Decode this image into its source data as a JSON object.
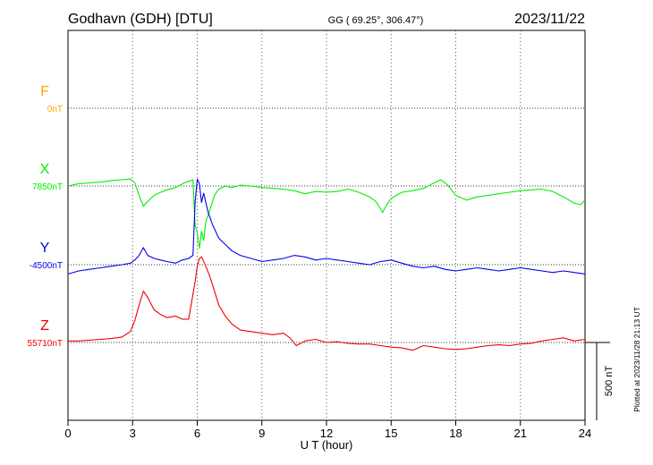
{
  "header": {
    "station": "Godhavn (GDH)  [DTU]",
    "coords": "GG ( 69.25°, 306.47°)",
    "date": "2023/11/22"
  },
  "side_note": "Plotted at 2023/11/28 21:13 UT",
  "scale_bar_label": "500 nT",
  "chart_data": {
    "type": "line",
    "xlabel": "U T (hour)",
    "xlim": [
      0,
      24
    ],
    "xticks": [
      0,
      3,
      6,
      9,
      12,
      15,
      18,
      21,
      24
    ],
    "ylabel": "",
    "scale_nT": 500,
    "series": [
      {
        "name": "F",
        "baseline_label": "0nT",
        "color": "#ffaa00",
        "x": [],
        "y": []
      },
      {
        "name": "X",
        "baseline_label": "7850nT",
        "color": "#00ee00",
        "x": [
          0,
          0.5,
          1,
          1.5,
          2,
          2.5,
          2.9,
          3.1,
          3.3,
          3.5,
          3.7,
          4,
          4.3,
          4.6,
          5,
          5.2,
          5.4,
          5.6,
          5.8,
          5.9,
          6,
          6.1,
          6.2,
          6.3,
          6.4,
          6.6,
          6.8,
          7,
          7.3,
          7.6,
          8,
          8.5,
          9,
          9.5,
          10,
          10.5,
          11,
          11.5,
          12,
          12.5,
          13,
          13.5,
          14,
          14.3,
          14.6,
          14.8,
          15,
          15.5,
          16,
          16.5,
          17,
          17.3,
          17.6,
          18,
          18.5,
          19,
          19.5,
          20,
          20.5,
          21,
          21.5,
          22,
          22.5,
          23,
          23.5,
          23.8,
          24
        ],
        "y": [
          7850,
          7865,
          7870,
          7875,
          7885,
          7890,
          7895,
          7870,
          7790,
          7720,
          7750,
          7790,
          7810,
          7825,
          7840,
          7855,
          7870,
          7880,
          7890,
          7600,
          7550,
          7450,
          7560,
          7500,
          7620,
          7700,
          7790,
          7830,
          7850,
          7840,
          7855,
          7850,
          7840,
          7835,
          7830,
          7820,
          7800,
          7815,
          7810,
          7815,
          7830,
          7810,
          7780,
          7750,
          7680,
          7730,
          7770,
          7810,
          7820,
          7835,
          7870,
          7890,
          7860,
          7790,
          7760,
          7780,
          7790,
          7800,
          7810,
          7820,
          7825,
          7830,
          7815,
          7780,
          7740,
          7730,
          7760
        ]
      },
      {
        "name": "Y",
        "baseline_label": "-4500nT",
        "color": "#0000ee",
        "x": [
          0,
          0.5,
          1,
          1.5,
          2,
          2.5,
          2.9,
          3.1,
          3.3,
          3.5,
          3.7,
          4,
          4.3,
          4.6,
          5,
          5.3,
          5.6,
          5.8,
          5.9,
          6,
          6.1,
          6.2,
          6.3,
          6.5,
          6.7,
          7,
          7.3,
          7.6,
          8,
          8.5,
          9,
          9.5,
          10,
          10.5,
          11,
          11.5,
          12,
          12.5,
          13,
          13.5,
          14,
          14.5,
          15,
          15.5,
          16,
          16.5,
          17,
          17.5,
          18,
          18.5,
          19,
          19.5,
          20,
          20.5,
          21,
          21.5,
          22,
          22.5,
          23,
          23.5,
          24
        ],
        "y": [
          -4560,
          -4540,
          -4530,
          -4520,
          -4510,
          -4500,
          -4490,
          -4470,
          -4440,
          -4390,
          -4440,
          -4460,
          -4470,
          -4480,
          -4490,
          -4470,
          -4460,
          -4440,
          -4100,
          -3950,
          -3980,
          -4100,
          -4040,
          -4160,
          -4240,
          -4330,
          -4370,
          -4410,
          -4440,
          -4460,
          -4480,
          -4470,
          -4460,
          -4440,
          -4450,
          -4470,
          -4460,
          -4470,
          -4480,
          -4490,
          -4500,
          -4480,
          -4470,
          -4490,
          -4510,
          -4520,
          -4510,
          -4530,
          -4540,
          -4530,
          -4520,
          -4530,
          -4540,
          -4530,
          -4520,
          -4530,
          -4540,
          -4550,
          -4540,
          -4550,
          -4560
        ]
      },
      {
        "name": "Z",
        "baseline_label": "55710nT",
        "color": "#ee0000",
        "x": [
          0,
          0.5,
          1,
          1.5,
          2,
          2.5,
          2.9,
          3.1,
          3.3,
          3.5,
          3.7,
          4,
          4.3,
          4.6,
          5,
          5.3,
          5.6,
          5.8,
          5.9,
          6,
          6.1,
          6.2,
          6.4,
          6.6,
          6.8,
          7,
          7.3,
          7.6,
          8,
          8.5,
          9,
          9.5,
          10,
          10.3,
          10.6,
          11,
          11.5,
          12,
          12.5,
          13,
          13.5,
          14,
          14.5,
          15,
          15.5,
          16,
          16.5,
          17,
          17.5,
          18,
          18.5,
          19,
          19.5,
          20,
          20.5,
          21,
          21.5,
          22,
          22.5,
          23,
          23.5,
          24
        ],
        "y": [
          55720,
          55720,
          55725,
          55730,
          55735,
          55745,
          55780,
          55850,
          55950,
          56040,
          56000,
          55920,
          55890,
          55870,
          55880,
          55860,
          55860,
          56020,
          56100,
          56200,
          56250,
          56260,
          56200,
          56130,
          56040,
          55950,
          55880,
          55830,
          55790,
          55780,
          55770,
          55760,
          55770,
          55740,
          55690,
          55720,
          55730,
          55710,
          55715,
          55705,
          55700,
          55700,
          55690,
          55680,
          55675,
          55660,
          55690,
          55680,
          55670,
          55665,
          55670,
          55680,
          55690,
          55695,
          55690,
          55700,
          55705,
          55720,
          55730,
          55740,
          55720,
          55730
        ]
      }
    ]
  }
}
